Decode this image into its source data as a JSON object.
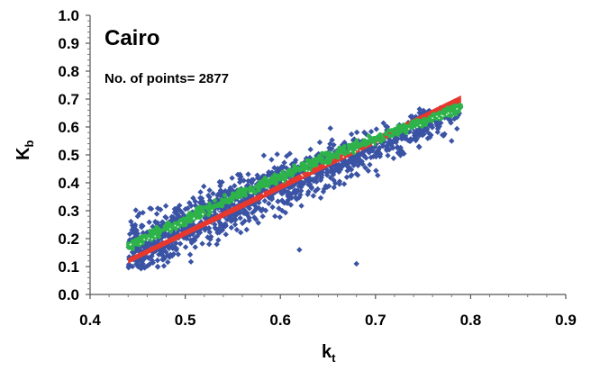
{
  "chart_data": {
    "type": "scatter",
    "title": "Cairo",
    "annotation": "No. of points= 2877",
    "xlabel": {
      "main": "k",
      "sub": "t"
    },
    "ylabel": {
      "main": "K",
      "sub": "b"
    },
    "xlim": [
      0.4,
      0.9
    ],
    "ylim": [
      0.0,
      1.0
    ],
    "x_ticks": [
      "0.4",
      "0.5",
      "0.6",
      "0.7",
      "0.8",
      "0.9"
    ],
    "y_ticks": [
      "0.0",
      "0.1",
      "0.2",
      "0.3",
      "0.4",
      "0.5",
      "0.6",
      "0.7",
      "0.8",
      "0.9",
      "1.0"
    ],
    "grid": false,
    "series": [
      {
        "marker": "diamond",
        "color": "#3a53a4",
        "x_range": [
          0.44,
          0.79
        ],
        "trend": {
          "slope": 1.43,
          "intercept": -0.47
        },
        "spread": 0.06,
        "outliers": [
          {
            "x": 0.68,
            "y": 0.11
          },
          {
            "x": 0.64,
            "y": 0.43
          },
          {
            "x": 0.62,
            "y": 0.16
          },
          {
            "x": 0.78,
            "y": 0.55
          },
          {
            "x": 0.45,
            "y": 0.28
          },
          {
            "x": 0.67,
            "y": 0.53
          }
        ]
      },
      {
        "marker": "line",
        "color": "#e8382e",
        "points": [
          {
            "x": 0.44,
            "y": 0.12
          },
          {
            "x": 0.79,
            "y": 0.7
          }
        ]
      },
      {
        "marker": "dot",
        "color": "#2eb34a",
        "x_range": [
          0.44,
          0.79
        ],
        "trend": {
          "slope": 1.43,
          "intercept": -0.46
        },
        "spread": 0.012
      }
    ]
  }
}
